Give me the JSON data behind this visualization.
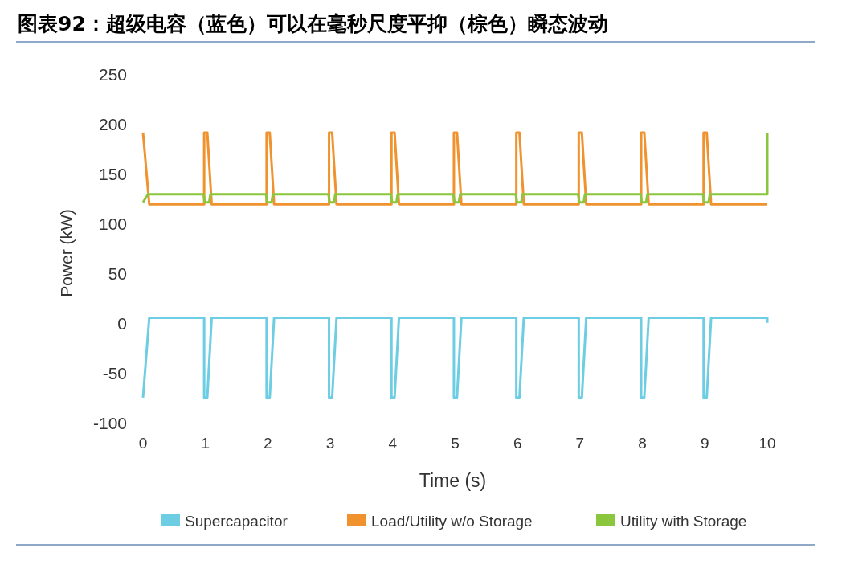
{
  "chart_data": {
    "type": "line",
    "title": "图表92：超级电容（蓝色）可以在毫秒尺度平抑（棕色）瞬态波动",
    "xlabel": "Time (s)",
    "ylabel": "Power (kW)",
    "xlim": [
      0,
      10
    ],
    "xticks": [
      0,
      1,
      2,
      3,
      4,
      5,
      6,
      7,
      8,
      9,
      10
    ],
    "ylim": [
      -100,
      250
    ],
    "yticks": [
      -100,
      -50,
      0,
      50,
      100,
      150,
      200,
      250
    ],
    "legend": "bottom",
    "marker": "none",
    "line_style": "solid",
    "series": [
      {
        "name": "Supercapacitor",
        "color": "#6dcde3",
        "x": [
          0,
          0.1,
          0.98,
          0.98,
          1.03,
          1.1,
          1.98,
          1.98,
          2.03,
          2.1,
          2.98,
          2.98,
          3.03,
          3.1,
          3.98,
          3.98,
          4.03,
          4.1,
          4.98,
          4.98,
          5.03,
          5.1,
          5.98,
          5.98,
          6.03,
          6.1,
          6.98,
          6.98,
          7.03,
          7.1,
          7.98,
          7.98,
          8.03,
          8.1,
          8.98,
          8.98,
          9.03,
          9.1,
          10,
          10
        ],
        "values": [
          -74,
          6,
          6,
          -74,
          -74,
          6,
          6,
          -74,
          -74,
          6,
          6,
          -74,
          -74,
          6,
          6,
          -74,
          -74,
          6,
          6,
          -74,
          -74,
          6,
          6,
          -74,
          -74,
          6,
          6,
          -74,
          -74,
          6,
          6,
          -74,
          -74,
          6,
          6,
          -74,
          -74,
          6,
          6,
          1
        ]
      },
      {
        "name": "Load/Utility w/o Storage",
        "color": "#f0932f",
        "x": [
          0,
          0.1,
          0.98,
          0.98,
          1.03,
          1.1,
          1.98,
          1.98,
          2.03,
          2.1,
          2.98,
          2.98,
          3.03,
          3.1,
          3.98,
          3.98,
          4.03,
          4.1,
          4.98,
          4.98,
          5.03,
          5.1,
          5.98,
          5.98,
          6.03,
          6.1,
          6.98,
          6.98,
          7.03,
          7.1,
          7.98,
          7.98,
          8.03,
          8.1,
          8.98,
          8.98,
          9.03,
          9.1,
          10
        ],
        "values": [
          192,
          120,
          120,
          192,
          192,
          120,
          120,
          192,
          192,
          120,
          120,
          192,
          192,
          120,
          120,
          192,
          192,
          120,
          120,
          192,
          192,
          120,
          120,
          192,
          192,
          120,
          120,
          192,
          192,
          120,
          120,
          192,
          192,
          120,
          120,
          192,
          192,
          120,
          120
        ]
      },
      {
        "name": "Utility with Storage",
        "color": "#8cc63f",
        "x": [
          0,
          0.08,
          0.97,
          0.99,
          1.06,
          1.08,
          1.97,
          1.99,
          2.06,
          2.08,
          2.97,
          2.99,
          3.06,
          3.08,
          3.97,
          3.99,
          4.06,
          4.08,
          4.97,
          4.99,
          5.06,
          5.08,
          5.97,
          5.99,
          6.06,
          6.08,
          6.97,
          6.99,
          7.06,
          7.08,
          7.97,
          7.99,
          8.06,
          8.08,
          8.97,
          8.99,
          9.06,
          9.08,
          10,
          10
        ],
        "values": [
          122,
          130,
          130,
          122,
          122,
          130,
          130,
          122,
          122,
          130,
          130,
          122,
          122,
          130,
          130,
          122,
          122,
          130,
          130,
          122,
          122,
          130,
          130,
          122,
          122,
          130,
          130,
          122,
          122,
          130,
          130,
          122,
          122,
          130,
          130,
          122,
          122,
          130,
          130,
          192
        ]
      }
    ]
  }
}
